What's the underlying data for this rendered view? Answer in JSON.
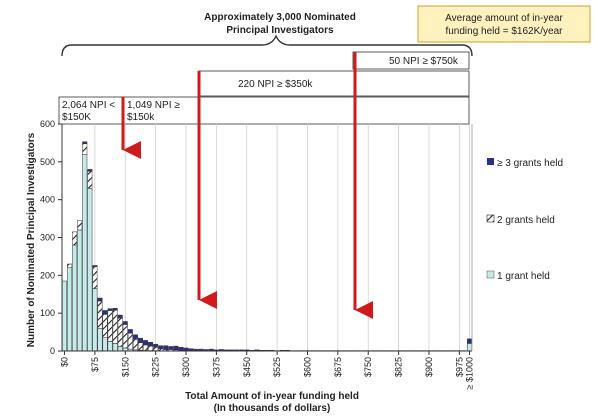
{
  "header": {
    "title_line1": "Approximately 3,000 Nominated",
    "title_line2": "Principal Investigators"
  },
  "average_box": {
    "line1": "Average amount of in-year",
    "line2": "funding held = $162K/year"
  },
  "annotations": {
    "npi_750_label": "50 NPI  ≥ $750k",
    "npi_350_label": "220 NPI  ≥ $350k",
    "npi_lt150_line1": "2,064 NPI <",
    "npi_lt150_line2": "$150K",
    "npi_ge150_line1": "1,049 NPI ≥",
    "npi_ge150_line2": "$150k"
  },
  "colors": {
    "one_grant": "#c4eaea",
    "two_grants_fill": "#ffffff",
    "two_grants_hatch": "#222222",
    "three_grants": "#2a2f8a",
    "arrow": "#d11a1a",
    "avg_box_bg": "#fff2bf",
    "avg_box_border": "#c9a227"
  },
  "chart_data": {
    "type": "bar",
    "stacked": true,
    "xlabel_line1": "Total Amount of in-year funding held",
    "xlabel_line2": "(In thousands of dollars)",
    "ylabel": "Number of Nominated Principal Investigators",
    "ylim": [
      0,
      600
    ],
    "yticks": [
      0,
      100,
      200,
      300,
      400,
      500,
      600
    ],
    "x": [
      0,
      12.5,
      25,
      37.5,
      50,
      62.5,
      75,
      87.5,
      100,
      112.5,
      125,
      137.5,
      150,
      162.5,
      175,
      187.5,
      200,
      212.5,
      225,
      237.5,
      250,
      262.5,
      275,
      287.5,
      300,
      312.5,
      325,
      337.5,
      350,
      362.5,
      375,
      387.5,
      400,
      412.5,
      425,
      437.5,
      450,
      462.5,
      475,
      487.5,
      500,
      512.5,
      525,
      537.5,
      550,
      562.5,
      575,
      587.5,
      600,
      612.5,
      625,
      637.5,
      650,
      662.5,
      675,
      687.5,
      700,
      712.5,
      725,
      737.5,
      750,
      762.5,
      775,
      787.5,
      800,
      812.5,
      825,
      837.5,
      850,
      862.5,
      875,
      887.5,
      900,
      912.5,
      925,
      937.5,
      950,
      962.5,
      975,
      987.5,
      1000
    ],
    "x_tick_labels": [
      "$0",
      "$75",
      "$150",
      "$225",
      "$300",
      "$375",
      "$450",
      "$525",
      "$600",
      "$675",
      "$750",
      "$825",
      "$900",
      "$975",
      "≥ $1000"
    ],
    "x_tick_values": [
      0,
      75,
      150,
      225,
      300,
      375,
      450,
      525,
      600,
      675,
      750,
      825,
      900,
      975,
      1000
    ],
    "series": [
      {
        "name": "1 grant held",
        "values": [
          185,
          220,
          280,
          320,
          520,
          430,
          165,
          60,
          35,
          25,
          20,
          12,
          8,
          5,
          3,
          2,
          1,
          1,
          1,
          0,
          0,
          0,
          0,
          0,
          0,
          0,
          0,
          0,
          0,
          0,
          0,
          0,
          0,
          0,
          0,
          0,
          0,
          0,
          0,
          0,
          0,
          0,
          0,
          0,
          0,
          0,
          0,
          0,
          0,
          0,
          0,
          0,
          0,
          0,
          0,
          0,
          0,
          0,
          0,
          0,
          0,
          0,
          0,
          0,
          0,
          0,
          0,
          0,
          0,
          0,
          0,
          0,
          0,
          0,
          0,
          0,
          0,
          0,
          0,
          0,
          20
        ]
      },
      {
        "name": "2 grants held",
        "values": [
          0,
          10,
          35,
          25,
          28,
          45,
          58,
          72,
          62,
          82,
          88,
          75,
          62,
          42,
          28,
          20,
          15,
          12,
          9,
          6,
          4,
          4,
          3,
          2,
          2,
          1,
          0,
          1,
          1,
          1,
          0,
          1,
          1,
          0,
          0,
          0,
          1,
          0,
          0,
          0,
          0,
          0,
          0,
          0,
          0,
          0,
          0,
          0,
          0,
          0,
          0,
          0,
          0,
          0,
          0,
          0,
          0,
          0,
          0,
          0,
          0,
          0,
          0,
          0,
          0,
          0,
          0,
          0,
          0,
          0,
          0,
          0,
          0,
          0,
          0,
          0,
          0,
          0,
          0,
          0,
          0
        ]
      },
      {
        "name": "≥ 3 grants held",
        "values": [
          0,
          0,
          0,
          0,
          5,
          5,
          3,
          8,
          10,
          5,
          5,
          8,
          8,
          10,
          12,
          12,
          12,
          10,
          8,
          8,
          10,
          8,
          10,
          8,
          6,
          5,
          5,
          4,
          3,
          4,
          3,
          3,
          2,
          3,
          3,
          3,
          2,
          2,
          3,
          2,
          2,
          2,
          1,
          2,
          2,
          1,
          1,
          1,
          1,
          1,
          1,
          1,
          1,
          1,
          1,
          1,
          1,
          1,
          1,
          1,
          1,
          1,
          1,
          1,
          1,
          1,
          1,
          1,
          1,
          1,
          1,
          1,
          1,
          1,
          1,
          1,
          1,
          1,
          1,
          1,
          12
        ]
      }
    ],
    "legend": [
      "≥ 3 grants held",
      "2 grants held",
      "1 grant held"
    ],
    "legend_placement": "right",
    "grid": "vertical"
  }
}
